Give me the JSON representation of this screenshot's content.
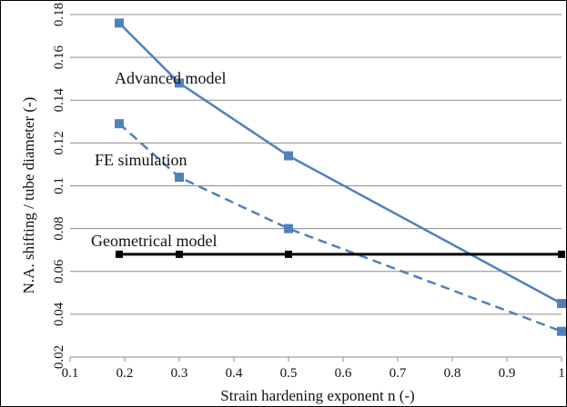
{
  "chart_data": {
    "type": "line",
    "xlabel": "Strain hardening exponent n (-)",
    "ylabel": "N.A. shifting / tube diameter (-)",
    "xlim": [
      0.1,
      1.0
    ],
    "ylim": [
      0.02,
      0.18
    ],
    "xticks": [
      "0.1",
      "0.2",
      "0.3",
      "0.4",
      "0.5",
      "0.6",
      "0.7",
      "0.8",
      "0.9",
      "1"
    ],
    "yticks": [
      "0.02",
      "0.04",
      "0.06",
      "0.08",
      "0.1",
      "0.12",
      "0.14",
      "0.16",
      "0.18"
    ],
    "grid": "horizontal",
    "series": [
      {
        "name": "Advanced model",
        "style": "solid",
        "color": "#4f81bd",
        "marker": "square",
        "x": [
          0.19,
          0.3,
          0.5,
          1.0
        ],
        "y": [
          0.176,
          0.148,
          0.114,
          0.045
        ]
      },
      {
        "name": "FE simulation",
        "style": "dashed",
        "color": "#4f81bd",
        "marker": "square",
        "x": [
          0.19,
          0.3,
          0.5,
          1.0
        ],
        "y": [
          0.129,
          0.104,
          0.08,
          0.032
        ]
      },
      {
        "name": "Geometrical model",
        "style": "solid",
        "color": "#000000",
        "marker": "square",
        "x": [
          0.19,
          0.3,
          0.5,
          1.0
        ],
        "y": [
          0.068,
          0.068,
          0.068,
          0.068
        ]
      }
    ]
  }
}
